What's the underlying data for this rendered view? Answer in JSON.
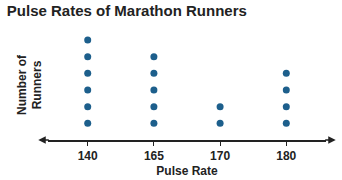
{
  "chart_data": {
    "type": "dot",
    "title": "Pulse Rates of Marathon Runners",
    "x_label": "Pulse Rate",
    "y_label": "Number of\nRunners",
    "categories": [
      "140",
      "165",
      "170",
      "180"
    ],
    "values": [
      6,
      5,
      2,
      4
    ],
    "color": "#1d5f8c",
    "ylim": [
      0,
      6.6
    ],
    "grid": false,
    "tick_labels": "x"
  }
}
